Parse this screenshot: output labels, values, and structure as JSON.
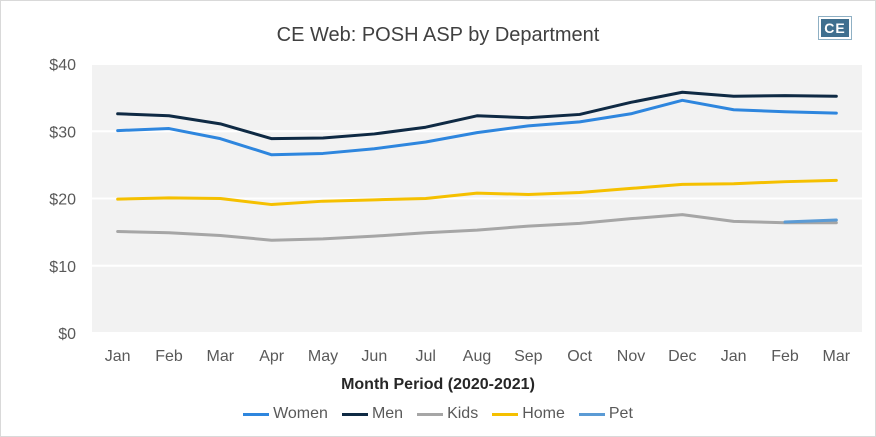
{
  "title": "CE Web: POSH ASP by Department",
  "logo_text": "CE",
  "chart_data": {
    "type": "line",
    "title": "CE Web: POSH ASP by Department",
    "xlabel": "Month Period (2020-2021)",
    "ylabel": "",
    "ylim": [
      0,
      40
    ],
    "yticks": [
      "$0",
      "$10",
      "$20",
      "$30",
      "$40"
    ],
    "ytick_values": [
      0,
      10,
      20,
      30,
      40
    ],
    "grid": true,
    "legend_position": "bottom",
    "plot_background": "#f2f2f2",
    "categories": [
      "Jan",
      "Feb",
      "Mar",
      "Apr",
      "May",
      "Jun",
      "Jul",
      "Aug",
      "Sep",
      "Oct",
      "Nov",
      "Dec",
      "Jan",
      "Feb",
      "Mar"
    ],
    "series": [
      {
        "name": "Women",
        "color": "#2e86de",
        "values": [
          30.1,
          30.4,
          28.9,
          26.5,
          26.7,
          27.4,
          28.4,
          29.8,
          30.8,
          31.4,
          32.6,
          34.6,
          33.2,
          32.9,
          32.7
        ]
      },
      {
        "name": "Men",
        "color": "#0f2a44",
        "values": [
          32.6,
          32.3,
          31.1,
          28.9,
          29.0,
          29.6,
          30.6,
          32.3,
          32.0,
          32.5,
          34.3,
          35.8,
          35.2,
          35.3,
          35.2
        ]
      },
      {
        "name": "Kids",
        "color": "#a6a6a6",
        "values": [
          15.1,
          14.9,
          14.5,
          13.8,
          14.0,
          14.4,
          14.9,
          15.3,
          15.9,
          16.3,
          17.0,
          17.6,
          16.6,
          16.4,
          16.4
        ]
      },
      {
        "name": "Home",
        "color": "#f5c000",
        "values": [
          19.9,
          20.1,
          20.0,
          19.1,
          19.6,
          19.8,
          20.0,
          20.8,
          20.6,
          20.9,
          21.5,
          22.1,
          22.2,
          22.5,
          22.7
        ]
      },
      {
        "name": "Pet",
        "color": "#5b9bd5",
        "values": [
          null,
          null,
          null,
          null,
          null,
          null,
          null,
          null,
          null,
          null,
          null,
          null,
          null,
          16.5,
          16.8
        ]
      }
    ]
  }
}
